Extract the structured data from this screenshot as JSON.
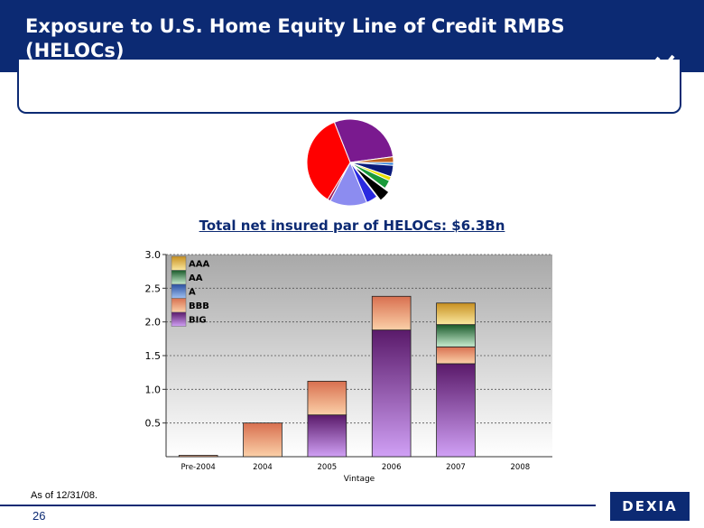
{
  "header": {
    "title": "Exposure to U.S. Home Equity Line of Credit RMBS (HELOCs)"
  },
  "subtitle": "Total net insured par of HELOCs: $6.3Bn",
  "footnote": "As of 12/31/08.",
  "page_number": "26",
  "logo_text": "DEXIA",
  "pie_data": {
    "type": "pie",
    "slices": [
      {
        "value": 27,
        "color": "#7a1a8f"
      },
      {
        "value": 2,
        "color": "#c0601f"
      },
      {
        "value": 1,
        "color": "#2d7fd8"
      },
      {
        "value": 4,
        "color": "#0a1a7a"
      },
      {
        "value": 1.5,
        "color": "#e8e000"
      },
      {
        "value": 3,
        "color": "#1a9a3a"
      },
      {
        "value": 4,
        "color": "#000000"
      },
      {
        "value": 4,
        "color": "#2a2ae0"
      },
      {
        "value": 13,
        "color": "#8c8cf0"
      },
      {
        "value": 1,
        "color": "#9a1a5a"
      },
      {
        "value": 33,
        "color": "#ff0000"
      }
    ]
  },
  "chart_data": {
    "type": "bar",
    "stacked": true,
    "categories": [
      "Pre-2004",
      "2004",
      "2005",
      "2006",
      "2007",
      "2008"
    ],
    "xlabel": "Vintage",
    "ylabel": "",
    "ylim": [
      0,
      3.0
    ],
    "yticks": [
      "0.5",
      "1.0",
      "1.5",
      "2.0",
      "2.5",
      "3.0"
    ],
    "legend_position": "top-left",
    "grid": true,
    "series": [
      {
        "name": "BIG",
        "values": [
          0,
          0,
          0.62,
          1.88,
          1.38,
          0
        ],
        "colors": [
          "#5a1a6a",
          "#d0a0f5"
        ]
      },
      {
        "name": "BBB",
        "values": [
          0.02,
          0.5,
          0.5,
          0.5,
          0.25,
          0
        ],
        "colors": [
          "#d87050",
          "#fbd0a8"
        ]
      },
      {
        "name": "A",
        "values": [
          0,
          0,
          0,
          0,
          0,
          0
        ],
        "colors": [
          "#2a50a0",
          "#a0c0f0"
        ]
      },
      {
        "name": "AA",
        "values": [
          0,
          0,
          0,
          0,
          0.33,
          0
        ],
        "colors": [
          "#1a5a2a",
          "#c8ecd0"
        ]
      },
      {
        "name": "AAA",
        "values": [
          0,
          0,
          0,
          0,
          0.32,
          0
        ],
        "colors": [
          "#c89020",
          "#fae8a0"
        ]
      }
    ],
    "legend_order": [
      "AAA",
      "AA",
      "A",
      "BBB",
      "BIG"
    ]
  }
}
